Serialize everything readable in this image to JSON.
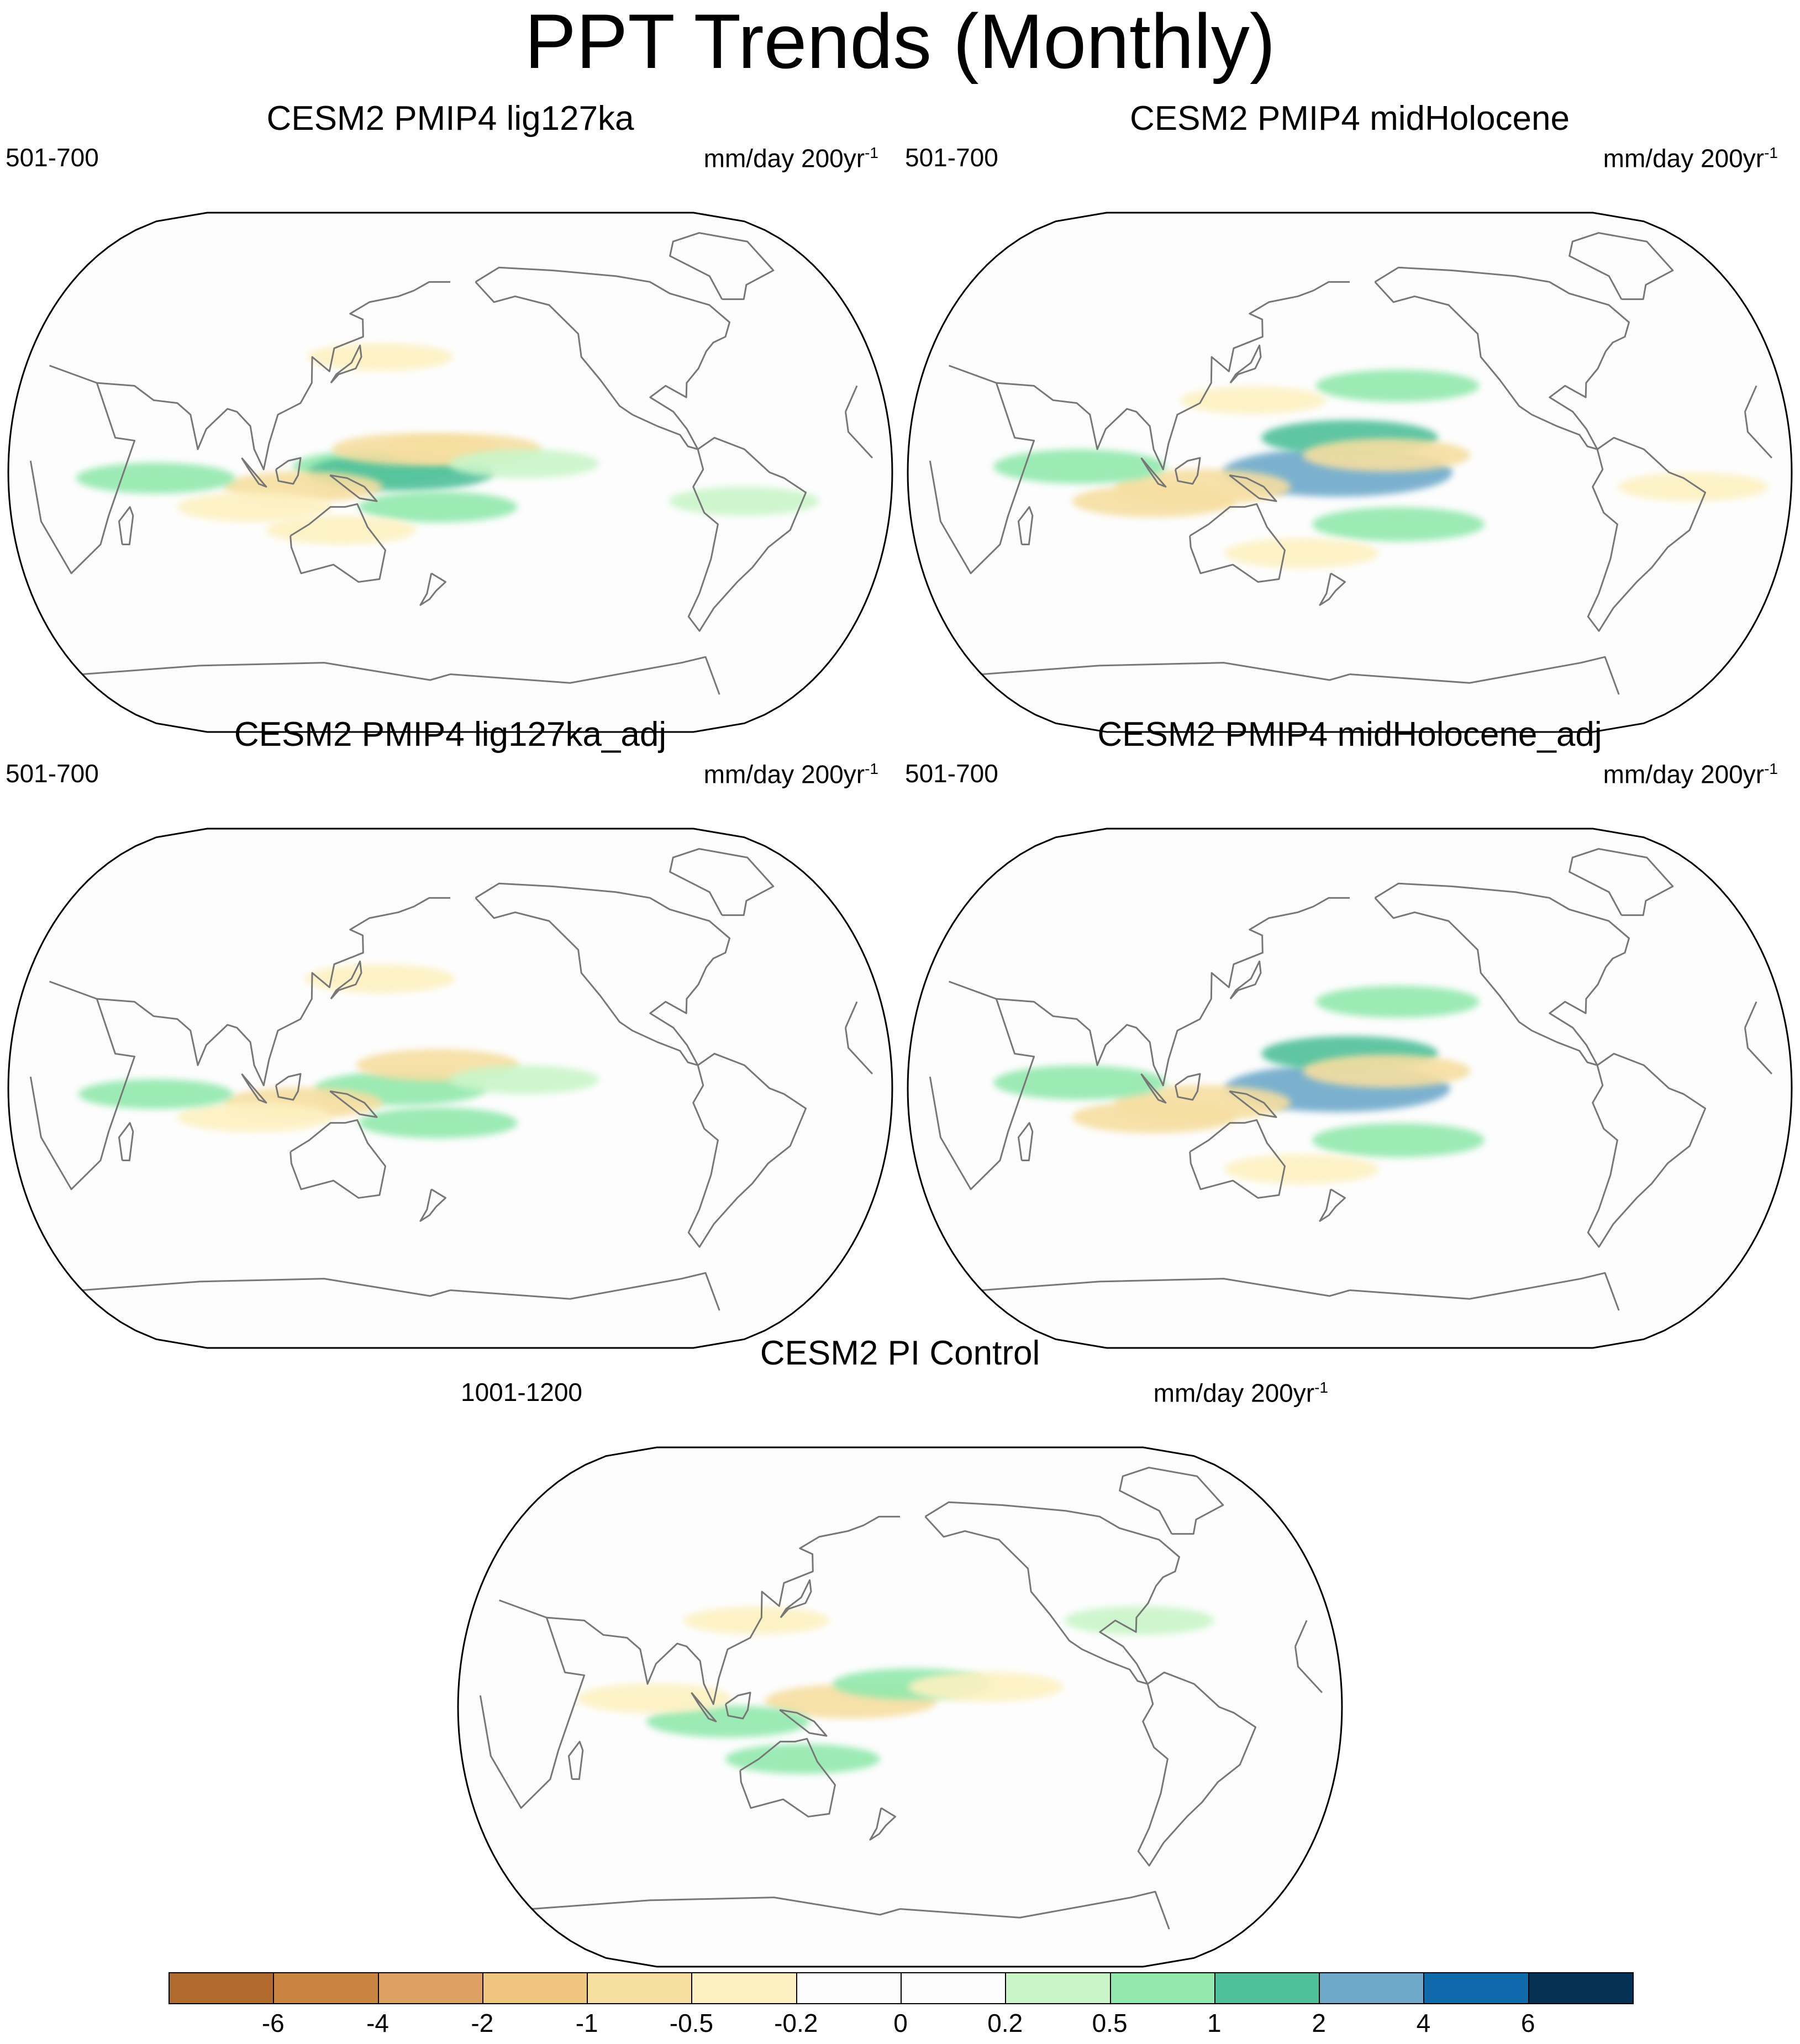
{
  "title": "PPT Trends (Monthly)",
  "panels": [
    {
      "title": "CESM2 PMIP4 lig127ka",
      "period": "501-700",
      "units": "mm/day 200yr",
      "units_sup": "-1",
      "anomalies": [
        {
          "lon": 150,
          "lat": 2,
          "v": 0.8
        },
        {
          "lon": 160,
          "lat": 0,
          "v": 1.2
        },
        {
          "lon": 175,
          "lat": -12,
          "v": 0.6
        },
        {
          "lon": 165,
          "lat": 8,
          "v": -0.7
        },
        {
          "lon": 185,
          "lat": 8,
          "v": -0.6
        },
        {
          "lon": 120,
          "lat": -5,
          "v": -0.6
        },
        {
          "lon": 100,
          "lat": -12,
          "v": -0.5
        },
        {
          "lon": 60,
          "lat": -2,
          "v": 0.6
        },
        {
          "lon": 135,
          "lat": -20,
          "v": -0.4
        },
        {
          "lon": 210,
          "lat": 3,
          "v": 0.4
        },
        {
          "lon": 300,
          "lat": -10,
          "v": 0.4
        },
        {
          "lon": 150,
          "lat": 40,
          "v": -0.3
        }
      ]
    },
    {
      "title": "CESM2 PMIP4 midHolocene",
      "period": "501-700",
      "units": "mm/day 200yr",
      "units_sup": "-1",
      "anomalies": [
        {
          "lon": 175,
          "lat": 0,
          "v": 2.2
        },
        {
          "lon": 180,
          "lat": 12,
          "v": 1.0
        },
        {
          "lon": 195,
          "lat": 6,
          "v": -0.8
        },
        {
          "lon": 200,
          "lat": -18,
          "v": 0.9
        },
        {
          "lon": 120,
          "lat": -5,
          "v": -1.0
        },
        {
          "lon": 100,
          "lat": -10,
          "v": -0.7
        },
        {
          "lon": 70,
          "lat": 2,
          "v": 0.9
        },
        {
          "lon": 160,
          "lat": -28,
          "v": -0.5
        },
        {
          "lon": 200,
          "lat": 30,
          "v": 0.7
        },
        {
          "lon": 320,
          "lat": -5,
          "v": -0.4
        },
        {
          "lon": 140,
          "lat": 25,
          "v": -0.3
        }
      ]
    },
    {
      "title": "CESM2 PMIP4 lig127ka_adj",
      "period": "501-700",
      "units": "mm/day 200yr",
      "units_sup": "-1",
      "anomalies": [
        {
          "lon": 160,
          "lat": 0,
          "v": 0.9
        },
        {
          "lon": 175,
          "lat": 8,
          "v": -0.7
        },
        {
          "lon": 120,
          "lat": -5,
          "v": -0.6
        },
        {
          "lon": 100,
          "lat": -10,
          "v": -0.5
        },
        {
          "lon": 60,
          "lat": -2,
          "v": 0.5
        },
        {
          "lon": 175,
          "lat": -12,
          "v": 0.6
        },
        {
          "lon": 150,
          "lat": 38,
          "v": -0.4
        },
        {
          "lon": 210,
          "lat": 3,
          "v": 0.4
        }
      ]
    },
    {
      "title": "CESM2 PMIP4 midHolocene_adj",
      "period": "501-700",
      "units": "mm/day 200yr",
      "units_sup": "-1",
      "anomalies": [
        {
          "lon": 175,
          "lat": 0,
          "v": 2.1
        },
        {
          "lon": 180,
          "lat": 12,
          "v": 1.0
        },
        {
          "lon": 195,
          "lat": 6,
          "v": -0.8
        },
        {
          "lon": 200,
          "lat": -18,
          "v": 0.9
        },
        {
          "lon": 120,
          "lat": -5,
          "v": -1.0
        },
        {
          "lon": 100,
          "lat": -10,
          "v": -0.7
        },
        {
          "lon": 70,
          "lat": 2,
          "v": 0.9
        },
        {
          "lon": 160,
          "lat": -28,
          "v": -0.5
        },
        {
          "lon": 200,
          "lat": 30,
          "v": 0.7
        }
      ]
    },
    {
      "title": "CESM2 PI Control",
      "period": "1001-1200",
      "units": "mm/day 200yr",
      "units_sup": "-1",
      "anomalies": [
        {
          "lon": 160,
          "lat": 2,
          "v": -0.9
        },
        {
          "lon": 185,
          "lat": 8,
          "v": 0.6
        },
        {
          "lon": 215,
          "lat": 7,
          "v": -0.5
        },
        {
          "lon": 110,
          "lat": -5,
          "v": 0.7
        },
        {
          "lon": 80,
          "lat": 3,
          "v": -0.5
        },
        {
          "lon": 140,
          "lat": -18,
          "v": 0.5
        },
        {
          "lon": 120,
          "lat": 30,
          "v": -0.3
        },
        {
          "lon": 280,
          "lat": 30,
          "v": 0.4
        }
      ]
    }
  ],
  "colorbar": {
    "colors": [
      "#b06a2c",
      "#c98440",
      "#dda263",
      "#f0c57e",
      "#f6dea0",
      "#fdf1c1",
      "#fdfdfd",
      "#fdfdfd",
      "#c9f5c9",
      "#92e8ad",
      "#4fc09a",
      "#6ea9ca",
      "#0f6aac",
      "#053155"
    ],
    "labels": [
      "-6",
      "-4",
      "-2",
      "-1",
      "-0.5",
      "-0.2",
      "0",
      "0.2",
      "0.5",
      "1",
      "2",
      "4",
      "6"
    ],
    "levels": [
      -6,
      -4,
      -2,
      -1,
      -0.5,
      -0.2,
      0,
      0.2,
      0.5,
      1,
      2,
      4,
      6
    ]
  },
  "map": {
    "central_longitude": 180,
    "coastline_color": "#777777",
    "ocean_color": "#fdfdfd"
  }
}
